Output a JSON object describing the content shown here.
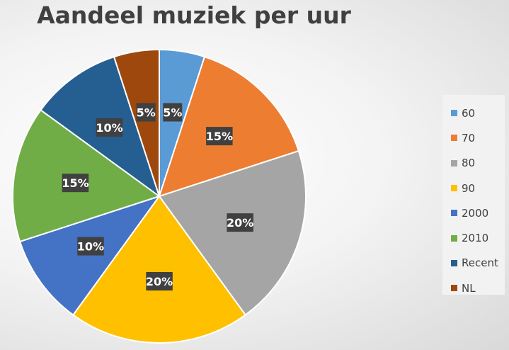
{
  "chart_data": {
    "type": "pie",
    "title": "Aandeel muziek per uur",
    "categories": [
      "60",
      "70",
      "80",
      "90",
      "2000",
      "2010",
      "Recent",
      "NL"
    ],
    "values": [
      5,
      15,
      20,
      20,
      10,
      15,
      10,
      5
    ],
    "labels": [
      "5%",
      "15%",
      "20%",
      "20%",
      "10%",
      "15%",
      "10%",
      "5%"
    ],
    "colors": [
      "#5b9bd5",
      "#ed7d31",
      "#a5a5a5",
      "#ffc000",
      "#4472c4",
      "#70ad47",
      "#255e91",
      "#9e480e"
    ],
    "legend_position": "right"
  }
}
